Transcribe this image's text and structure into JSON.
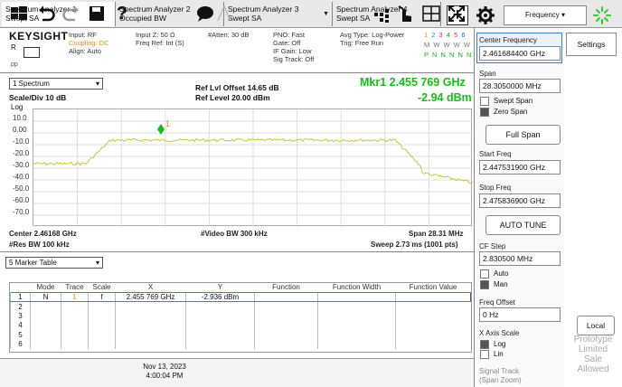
{
  "tabs": [
    {
      "line1": "Spectrum Analyzer 1",
      "line2": "Swept SA"
    },
    {
      "line1": "Spectrum Analyzer 2",
      "line2": "Occupied BW"
    },
    {
      "line1": "Spectrum Analyzer 3",
      "line2": "Swept SA"
    },
    {
      "line1": "Spectrum Analyzer 4",
      "line2": "Swept SA"
    }
  ],
  "top_right": {
    "plus": "+",
    "mode_select": "Frequency"
  },
  "header": {
    "brand": "KEYSIGHT",
    "brand_sub1": "R",
    "brand_sub2": "pp",
    "col1": [
      "Input: RF",
      "Coupling: DC",
      "Align: Auto"
    ],
    "col2": [
      "Input Z: 50 Ω",
      "",
      "Freq Ref: Int (S)"
    ],
    "col3": [
      "#Atten: 30 dB"
    ],
    "col4": [
      "PNO: Fast",
      "Gate: Off",
      "IF Gain: Low",
      "Sig Track: Off"
    ],
    "col5": [
      "Avg Type: Log-Power",
      "Trig: Free Run"
    ],
    "trace_nums": [
      "1",
      "2",
      "3",
      "4",
      "5",
      "6"
    ],
    "trace_row2": "M W W W W W",
    "trace_row3": "P N N N N N"
  },
  "screen": {
    "trace_select": "1 Spectrum",
    "scale_div": "Scale/Div 10 dB",
    "ref_offset": "Ref Lvl Offset 14.65 dB",
    "ref_level": "Ref Level 20.00 dBm",
    "mkr_label": "Mkr1  2.455 769 GHz",
    "mkr_value": "-2.94 dBm",
    "log": "Log",
    "y_ticks": [
      "10.0",
      "0.00",
      "-10.0",
      "-20.0",
      "-30.0",
      "-40.0",
      "-50.0",
      "-60.0",
      "-70.0"
    ],
    "marker_tag": "1",
    "center": "Center 2.46168 GHz",
    "res_bw": "#Res BW 100 kHz",
    "video_bw": "#Video BW 300 kHz",
    "span": "Span 28.31 MHz",
    "sweep": "Sweep 2.73 ms (1001 pts)"
  },
  "marker_table": {
    "select": "5 Marker Table",
    "headers": [
      "",
      "Mode",
      "Trace",
      "Scale",
      "X",
      "Y",
      "Function",
      "Function Width",
      "Function Value"
    ],
    "rows": [
      [
        "1",
        "N",
        "1",
        "f",
        "2.455 769 GHz",
        "-2.936 dBm",
        "",
        "",
        ""
      ],
      [
        "2",
        "",
        "",
        "",
        "",
        "",
        "",
        "",
        ""
      ],
      [
        "3",
        "",
        "",
        "",
        "",
        "",
        "",
        "",
        ""
      ],
      [
        "4",
        "",
        "",
        "",
        "",
        "",
        "",
        "",
        ""
      ],
      [
        "5",
        "",
        "",
        "",
        "",
        "",
        "",
        "",
        ""
      ],
      [
        "6",
        "",
        "",
        "",
        "",
        "",
        "",
        "",
        ""
      ]
    ]
  },
  "bottom": {
    "date": "Nov 13, 2023",
    "time": "4:00:04 PM",
    "help": "?"
  },
  "right_panel": {
    "center_freq_label": "Center Frequency",
    "center_freq_value": "2.461684400 GHz",
    "span_label": "Span",
    "span_value": "28.3050000 MHz",
    "swept_span": "Swept Span",
    "zero_span": "Zero Span",
    "full_span": "Full Span",
    "start_label": "Start Freq",
    "start_value": "2.447531900 GHz",
    "stop_label": "Stop Freq",
    "stop_value": "2.475836900 GHz",
    "auto_tune": "AUTO TUNE",
    "cf_step_label": "CF Step",
    "cf_step_value": "2.830500 MHz",
    "auto": "Auto",
    "man": "Man",
    "freq_offset_label": "Freq Offset",
    "freq_offset_value": "0 Hz",
    "x_axis_label": "X Axis Scale",
    "log": "Log",
    "lin": "Lin",
    "signal_track": "Signal Track",
    "signal_track_sub": "(Span Zoom)",
    "settings": "Settings",
    "local": "Local",
    "proto1": "Prototype",
    "proto2": "Limited",
    "proto3": "Sale",
    "proto4": "Allowed"
  },
  "colors": {
    "marker": "#15c015",
    "trace": "#c8c23a",
    "selection": "#3c7fd0"
  }
}
